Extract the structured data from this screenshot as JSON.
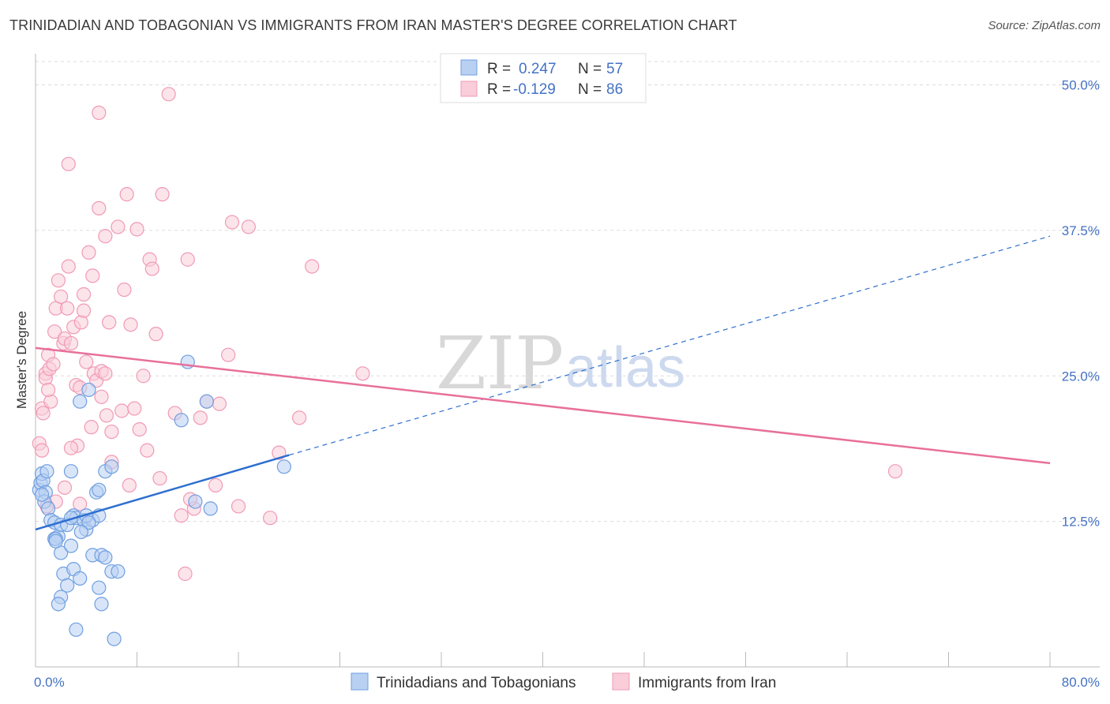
{
  "title": "TRINIDADIAN AND TOBAGONIAN VS IMMIGRANTS FROM IRAN MASTER'S DEGREE CORRELATION CHART",
  "source": "Source: ZipAtlas.com",
  "chart_data": {
    "type": "scatter",
    "title": "TRINIDADIAN AND TOBAGONIAN VS IMMIGRANTS FROM IRAN MASTER'S DEGREE CORRELATION CHART",
    "xlabel": "",
    "ylabel": "Master's Degree",
    "xlim": [
      0,
      80
    ],
    "ylim": [
      0,
      52
    ],
    "x_tick_labels": [
      "0.0%",
      "80.0%"
    ],
    "y_ticks": [
      12.5,
      25.0,
      37.5,
      50.0
    ],
    "y_tick_labels": [
      "12.5%",
      "25.0%",
      "37.5%",
      "50.0%"
    ],
    "grid": true,
    "legend_position": "top-center",
    "watermark": {
      "zip": "ZIP",
      "atlas": "atlas"
    },
    "stats": [
      {
        "r_label": "R =",
        "r_value": "0.247",
        "n_label": "N =",
        "n_value": "57"
      },
      {
        "r_label": "R =",
        "r_value": "-0.129",
        "n_label": "N =",
        "n_value": "86"
      }
    ],
    "series": [
      {
        "name": "Trinidadians and Tobagonians",
        "color": "#6f9fe0",
        "fill": "#b8d0f2",
        "line_color": "#2e6fcf",
        "trend": {
          "x0": 0,
          "y0": 11.8,
          "x1": 20,
          "y1": 18.2,
          "dash_x1": 80,
          "dash_y1": 37.0
        },
        "points": [
          [
            0.3,
            15.2
          ],
          [
            0.4,
            15.8
          ],
          [
            0.5,
            16.6
          ],
          [
            0.6,
            16.0
          ],
          [
            0.8,
            15.0
          ],
          [
            0.9,
            16.8
          ],
          [
            0.7,
            14.2
          ],
          [
            1.0,
            13.6
          ],
          [
            0.5,
            14.8
          ],
          [
            1.2,
            12.6
          ],
          [
            1.5,
            12.4
          ],
          [
            1.8,
            11.2
          ],
          [
            2.0,
            12.2
          ],
          [
            1.5,
            11.0
          ],
          [
            1.6,
            11.0
          ],
          [
            2.5,
            12.2
          ],
          [
            2.8,
            16.8
          ],
          [
            3.0,
            13.0
          ],
          [
            3.2,
            12.8
          ],
          [
            3.5,
            22.8
          ],
          [
            3.8,
            12.6
          ],
          [
            4.0,
            11.8
          ],
          [
            4.2,
            23.8
          ],
          [
            4.5,
            12.6
          ],
          [
            4.8,
            15.0
          ],
          [
            5.0,
            15.2
          ],
          [
            4.5,
            9.6
          ],
          [
            5.2,
            9.6
          ],
          [
            5.5,
            9.4
          ],
          [
            5.0,
            13.0
          ],
          [
            6.0,
            8.2
          ],
          [
            5.5,
            16.8
          ],
          [
            6.0,
            17.2
          ],
          [
            2.0,
            9.8
          ],
          [
            2.8,
            10.4
          ],
          [
            2.2,
            8.0
          ],
          [
            2.5,
            7.0
          ],
          [
            3.0,
            8.4
          ],
          [
            3.5,
            7.6
          ],
          [
            4.0,
            13.0
          ],
          [
            2.0,
            6.0
          ],
          [
            1.8,
            5.4
          ],
          [
            3.2,
            3.2
          ],
          [
            5.0,
            6.8
          ],
          [
            5.2,
            5.4
          ],
          [
            6.2,
            2.4
          ],
          [
            6.5,
            8.2
          ],
          [
            12.0,
            26.2
          ],
          [
            11.5,
            21.2
          ],
          [
            13.5,
            22.8
          ],
          [
            12.6,
            14.2
          ],
          [
            13.8,
            13.6
          ],
          [
            19.6,
            17.2
          ],
          [
            2.8,
            12.8
          ],
          [
            4.2,
            12.4
          ],
          [
            1.6,
            10.8
          ],
          [
            3.6,
            11.6
          ]
        ]
      },
      {
        "name": "Immigrants from Iran",
        "color": "#f09ab5",
        "fill": "#f9cdda",
        "line_color": "#e8709a",
        "trend": {
          "x0": 0,
          "y0": 27.4,
          "x1": 80,
          "y1": 17.5
        },
        "points": [
          [
            0.3,
            19.2
          ],
          [
            0.5,
            18.6
          ],
          [
            0.5,
            22.2
          ],
          [
            0.6,
            21.8
          ],
          [
            0.8,
            25.2
          ],
          [
            0.8,
            24.8
          ],
          [
            1.0,
            26.8
          ],
          [
            1.1,
            25.6
          ],
          [
            1.2,
            22.8
          ],
          [
            1.0,
            23.8
          ],
          [
            1.4,
            26.0
          ],
          [
            1.5,
            28.8
          ],
          [
            1.6,
            30.8
          ],
          [
            1.8,
            33.2
          ],
          [
            2.0,
            31.8
          ],
          [
            2.2,
            27.8
          ],
          [
            2.3,
            28.2
          ],
          [
            2.5,
            30.8
          ],
          [
            2.6,
            34.4
          ],
          [
            2.8,
            27.8
          ],
          [
            3.0,
            29.2
          ],
          [
            3.2,
            24.2
          ],
          [
            3.5,
            24.0
          ],
          [
            3.6,
            29.6
          ],
          [
            3.8,
            32.0
          ],
          [
            3.8,
            30.6
          ],
          [
            4.0,
            26.2
          ],
          [
            4.2,
            35.6
          ],
          [
            4.5,
            33.6
          ],
          [
            4.6,
            25.2
          ],
          [
            4.8,
            24.6
          ],
          [
            5.0,
            39.4
          ],
          [
            5.2,
            25.4
          ],
          [
            5.2,
            23.2
          ],
          [
            5.5,
            37.0
          ],
          [
            5.5,
            25.2
          ],
          [
            5.8,
            29.6
          ],
          [
            6.0,
            20.2
          ],
          [
            6.0,
            17.6
          ],
          [
            6.5,
            37.8
          ],
          [
            6.8,
            22.0
          ],
          [
            7.0,
            32.4
          ],
          [
            7.2,
            40.6
          ],
          [
            7.5,
            29.4
          ],
          [
            7.8,
            22.2
          ],
          [
            8.0,
            37.6
          ],
          [
            8.2,
            20.4
          ],
          [
            8.5,
            25.0
          ],
          [
            8.8,
            18.6
          ],
          [
            9.0,
            35.0
          ],
          [
            9.2,
            34.2
          ],
          [
            9.5,
            28.6
          ],
          [
            10.0,
            40.6
          ],
          [
            10.5,
            49.2
          ],
          [
            11.0,
            21.8
          ],
          [
            11.5,
            13.0
          ],
          [
            12.0,
            35.0
          ],
          [
            12.5,
            13.6
          ],
          [
            13.0,
            21.4
          ],
          [
            13.5,
            22.8
          ],
          [
            14.2,
            15.6
          ],
          [
            14.5,
            22.6
          ],
          [
            15.2,
            26.8
          ],
          [
            15.5,
            38.2
          ],
          [
            16.0,
            13.8
          ],
          [
            16.8,
            37.8
          ],
          [
            18.5,
            12.8
          ],
          [
            19.2,
            18.4
          ],
          [
            20.8,
            21.4
          ],
          [
            21.8,
            34.4
          ],
          [
            25.8,
            25.2
          ],
          [
            67.8,
            16.8
          ],
          [
            5.0,
            47.6
          ],
          [
            2.6,
            43.2
          ],
          [
            11.8,
            8.0
          ],
          [
            12.2,
            14.4
          ],
          [
            7.4,
            15.6
          ],
          [
            1.6,
            14.2
          ],
          [
            0.9,
            13.8
          ],
          [
            2.3,
            15.4
          ],
          [
            3.3,
            19.0
          ],
          [
            3.5,
            14.0
          ],
          [
            2.8,
            18.8
          ],
          [
            5.6,
            21.6
          ],
          [
            9.8,
            16.2
          ],
          [
            4.4,
            20.6
          ]
        ]
      }
    ]
  }
}
